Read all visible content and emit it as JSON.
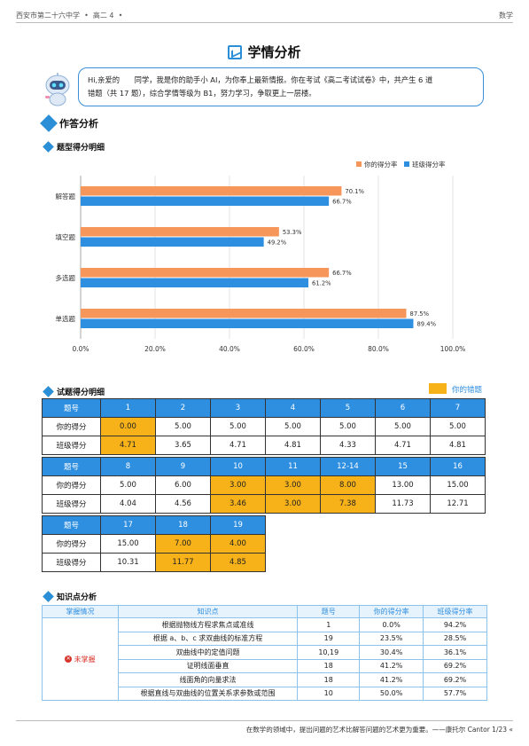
{
  "header": {
    "school": "西安市第二十六中学",
    "grade": "高二 4",
    "subject": "数学"
  },
  "title": "学情分析",
  "intro": {
    "line1": "Hi,亲爱的　　同学，我是你的助手小 AI，为你奉上最新情报。你在考试《高二考试试卷》中，共产生 6 道",
    "line2": "错题（共 17 题），综合学情等级为 B1，努力学习，争取更上一层楼。"
  },
  "sections": {
    "answer": "作答分析",
    "type_score": "题型得分明细",
    "item_score": "试题得分明细",
    "knowledge": "知识点分析"
  },
  "legend_wrong": "你的错题",
  "chart_data": {
    "type": "bar",
    "orientation": "horizontal",
    "categories": [
      "解答题",
      "填空题",
      "多选题",
      "单选题"
    ],
    "series": [
      {
        "name": "你的得分率",
        "values": [
          70.1,
          53.3,
          66.7,
          87.5
        ],
        "color": "#f7965a"
      },
      {
        "name": "班级得分率",
        "values": [
          66.7,
          49.2,
          61.2,
          89.4
        ],
        "color": "#2e8ee0"
      }
    ],
    "xlim": [
      0,
      100
    ],
    "ticks": [
      "0.0%",
      "20.0%",
      "40.0%",
      "60.0%",
      "80.0%",
      "100.0%"
    ],
    "legend_position": "top-right",
    "grid": true
  },
  "score_tables": {
    "labels": {
      "q": "题号",
      "mine": "你的得分",
      "class": "班级得分"
    },
    "blocks": [
      {
        "q": [
          "1",
          "2",
          "3",
          "4",
          "5",
          "6",
          "7"
        ],
        "mine": [
          "0.00",
          "5.00",
          "5.00",
          "5.00",
          "5.00",
          "5.00",
          "5.00"
        ],
        "class": [
          "4.71",
          "3.65",
          "4.71",
          "4.81",
          "4.33",
          "4.71",
          "4.81"
        ],
        "wrong": [
          0
        ]
      },
      {
        "q": [
          "8",
          "9",
          "10",
          "11",
          "12-14",
          "15",
          "16"
        ],
        "mine": [
          "5.00",
          "6.00",
          "3.00",
          "3.00",
          "8.00",
          "13.00",
          "15.00"
        ],
        "class": [
          "4.04",
          "4.56",
          "3.46",
          "3.00",
          "7.38",
          "11.73",
          "12.71"
        ],
        "wrong": [
          2,
          3,
          4
        ]
      },
      {
        "q": [
          "17",
          "18",
          "19"
        ],
        "mine": [
          "15.00",
          "7.00",
          "4.00"
        ],
        "class": [
          "10.31",
          "11.77",
          "4.85"
        ],
        "wrong": [
          1,
          2
        ]
      }
    ]
  },
  "knowledge": {
    "headers": [
      "掌握情况",
      "知识点",
      "题号",
      "你的得分率",
      "班级得分率"
    ],
    "status": "未掌握",
    "rows": [
      [
        "根据抛物线方程求焦点或准线",
        "1",
        "0.0%",
        "94.2%"
      ],
      [
        "根据 a、b、c 求双曲线的标准方程",
        "19",
        "23.5%",
        "28.5%"
      ],
      [
        "双曲线中的定值问题",
        "10,19",
        "30.4%",
        "36.1%"
      ],
      [
        "证明线面垂直",
        "18",
        "41.2%",
        "69.2%"
      ],
      [
        "线面角的向量求法",
        "18",
        "41.2%",
        "69.2%"
      ],
      [
        "根据直线与双曲线的位置关系求参数或范围",
        "10",
        "50.0%",
        "57.7%"
      ]
    ]
  },
  "footer": "在数学的领域中，提出问题的艺术比解答问题的艺术更为重要。——康托尔 Cantor 1/23 «"
}
